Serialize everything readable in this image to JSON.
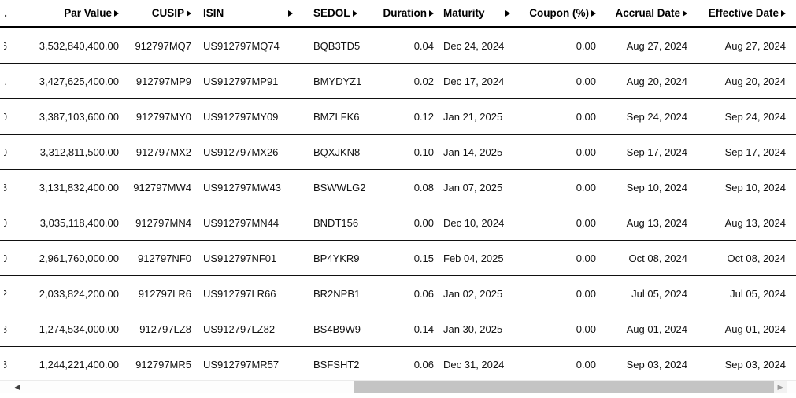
{
  "table": {
    "header_fragment": ".",
    "columns": [
      {
        "key": "fragment",
        "label": ""
      },
      {
        "key": "par_value",
        "label": "Par Value"
      },
      {
        "key": "cusip",
        "label": "CUSIP"
      },
      {
        "key": "isin",
        "label": "ISIN"
      },
      {
        "key": "sedol",
        "label": "SEDOL"
      },
      {
        "key": "duration",
        "label": "Duration"
      },
      {
        "key": "maturity",
        "label": "Maturity"
      },
      {
        "key": "coupon",
        "label": "Coupon (%)"
      },
      {
        "key": "accrual_date",
        "label": "Accrual Date"
      },
      {
        "key": "effective_date",
        "label": "Effective Date"
      }
    ],
    "rows": [
      {
        "fragment": "6",
        "par_value": "3,532,840,400.00",
        "cusip": "912797MQ7",
        "isin": "US912797MQ74",
        "sedol": "BQB3TD5",
        "duration": "0.04",
        "maturity": "Dec 24, 2024",
        "coupon": "0.00",
        "accrual_date": "Aug 27, 2024",
        "effective_date": "Aug 27, 2024"
      },
      {
        "fragment": ".",
        "par_value": "3,427,625,400.00",
        "cusip": "912797MP9",
        "isin": "US912797MP91",
        "sedol": "BMYDYZ1",
        "duration": "0.02",
        "maturity": "Dec 17, 2024",
        "coupon": "0.00",
        "accrual_date": "Aug 20, 2024",
        "effective_date": "Aug 20, 2024"
      },
      {
        "fragment": "0",
        "par_value": "3,387,103,600.00",
        "cusip": "912797MY0",
        "isin": "US912797MY09",
        "sedol": "BMZLFK6",
        "duration": "0.12",
        "maturity": "Jan 21, 2025",
        "coupon": "0.00",
        "accrual_date": "Sep 24, 2024",
        "effective_date": "Sep 24, 2024"
      },
      {
        "fragment": "0",
        "par_value": "3,312,811,500.00",
        "cusip": "912797MX2",
        "isin": "US912797MX26",
        "sedol": "BQXJKN8",
        "duration": "0.10",
        "maturity": "Jan 14, 2025",
        "coupon": "0.00",
        "accrual_date": "Sep 17, 2024",
        "effective_date": "Sep 17, 2024"
      },
      {
        "fragment": "8",
        "par_value": "3,131,832,400.00",
        "cusip": "912797MW4",
        "isin": "US912797MW43",
        "sedol": "BSWWLG2",
        "duration": "0.08",
        "maturity": "Jan 07, 2025",
        "coupon": "0.00",
        "accrual_date": "Sep 10, 2024",
        "effective_date": "Sep 10, 2024"
      },
      {
        "fragment": "0",
        "par_value": "3,035,118,400.00",
        "cusip": "912797MN4",
        "isin": "US912797MN44",
        "sedol": "BNDT156",
        "duration": "0.00",
        "maturity": "Dec 10, 2024",
        "coupon": "0.00",
        "accrual_date": "Aug 13, 2024",
        "effective_date": "Aug 13, 2024"
      },
      {
        "fragment": "0",
        "par_value": "2,961,760,000.00",
        "cusip": "912797NF0",
        "isin": "US912797NF01",
        "sedol": "BP4YKR9",
        "duration": "0.15",
        "maturity": "Feb 04, 2025",
        "coupon": "0.00",
        "accrual_date": "Oct 08, 2024",
        "effective_date": "Oct 08, 2024"
      },
      {
        "fragment": "2",
        "par_value": "2,033,824,200.00",
        "cusip": "912797LR6",
        "isin": "US912797LR66",
        "sedol": "BR2NPB1",
        "duration": "0.06",
        "maturity": "Jan 02, 2025",
        "coupon": "0.00",
        "accrual_date": "Jul 05, 2024",
        "effective_date": "Jul 05, 2024"
      },
      {
        "fragment": "8",
        "par_value": "1,274,534,000.00",
        "cusip": "912797LZ8",
        "isin": "US912797LZ82",
        "sedol": "BS4B9W9",
        "duration": "0.14",
        "maturity": "Jan 30, 2025",
        "coupon": "0.00",
        "accrual_date": "Aug 01, 2024",
        "effective_date": "Aug 01, 2024"
      },
      {
        "fragment": "8",
        "par_value": "1,244,221,400.00",
        "cusip": "912797MR5",
        "isin": "US912797MR57",
        "sedol": "BSFSHT2",
        "duration": "0.06",
        "maturity": "Dec 31, 2024",
        "coupon": "0.00",
        "accrual_date": "Sep 03, 2024",
        "effective_date": "Sep 03, 2024"
      }
    ]
  },
  "icons": {
    "sort": "▶",
    "scroll_left": "◀",
    "scroll_right": "▶"
  },
  "colors": {
    "header_text": "#000000",
    "body_text": "#111111",
    "row_rule": "#111111",
    "header_rule": "#000000",
    "scrollbar_thumb": "#c4c4c4",
    "scroll_left_arrow": "#3f3f3f",
    "scroll_right_arrow": "#9b9b9b"
  }
}
